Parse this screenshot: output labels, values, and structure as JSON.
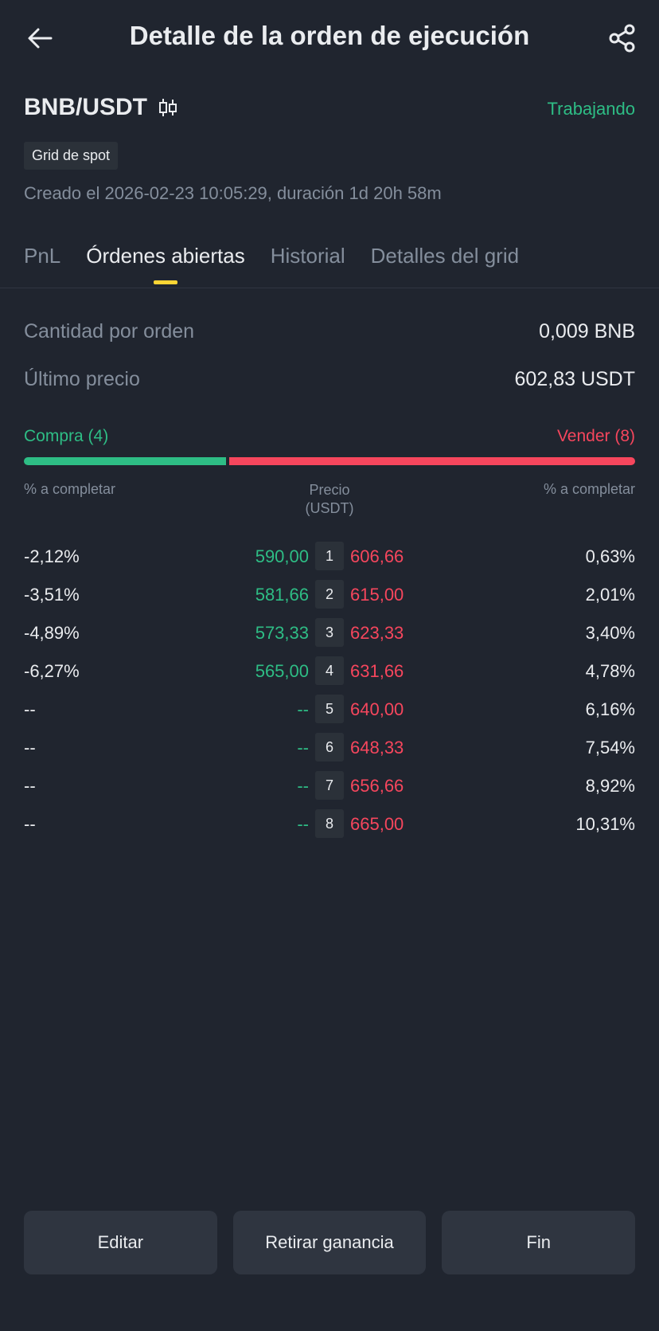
{
  "header": {
    "title": "Detalle de la orden de ejecución",
    "back_icon": "arrow-left-icon",
    "share_icon": "share-icon"
  },
  "order": {
    "pair": "BNB/USDT",
    "pair_icon": "candlestick-icon",
    "status": "Trabajando",
    "badge": "Grid de spot",
    "created": "Creado el 2026-02-23 10:05:29, duración 1d 20h 58m"
  },
  "tabs": [
    {
      "label": "PnL",
      "active": false
    },
    {
      "label": "Órdenes abiertas",
      "active": true
    },
    {
      "label": "Historial",
      "active": false
    },
    {
      "label": "Detalles del grid",
      "active": false
    }
  ],
  "info": {
    "qty_label": "Cantidad por orden",
    "qty_value": "0,009 BNB",
    "price_label": "Último precio",
    "price_value": "602,83 USDT"
  },
  "split": {
    "buy_label": "Compra (4)",
    "sell_label": "Vender (8)",
    "buy_fraction": 0.333
  },
  "columns": {
    "left": "% a completar",
    "mid_line1": "Precio",
    "mid_line2": "(USDT)",
    "right": "% a completar"
  },
  "grid": [
    {
      "buy_pct": "-2,12%",
      "buy_price": "590,00",
      "index": "1",
      "sell_price": "606,66",
      "sell_pct": "0,63%"
    },
    {
      "buy_pct": "-3,51%",
      "buy_price": "581,66",
      "index": "2",
      "sell_price": "615,00",
      "sell_pct": "2,01%"
    },
    {
      "buy_pct": "-4,89%",
      "buy_price": "573,33",
      "index": "3",
      "sell_price": "623,33",
      "sell_pct": "3,40%"
    },
    {
      "buy_pct": "-6,27%",
      "buy_price": "565,00",
      "index": "4",
      "sell_price": "631,66",
      "sell_pct": "4,78%"
    },
    {
      "buy_pct": "--",
      "buy_price": "--",
      "index": "5",
      "sell_price": "640,00",
      "sell_pct": "6,16%"
    },
    {
      "buy_pct": "--",
      "buy_price": "--",
      "index": "6",
      "sell_price": "648,33",
      "sell_pct": "7,54%"
    },
    {
      "buy_pct": "--",
      "buy_price": "--",
      "index": "7",
      "sell_price": "656,66",
      "sell_pct": "8,92%"
    },
    {
      "buy_pct": "--",
      "buy_price": "--",
      "index": "8",
      "sell_price": "665,00",
      "sell_pct": "10,31%"
    }
  ],
  "footer": {
    "edit": "Editar",
    "withdraw": "Retirar ganancia",
    "end": "Fin"
  },
  "colors": {
    "background": "#20252f",
    "buy": "#2ebd85",
    "sell": "#f6465d",
    "accent": "#fcd535"
  }
}
